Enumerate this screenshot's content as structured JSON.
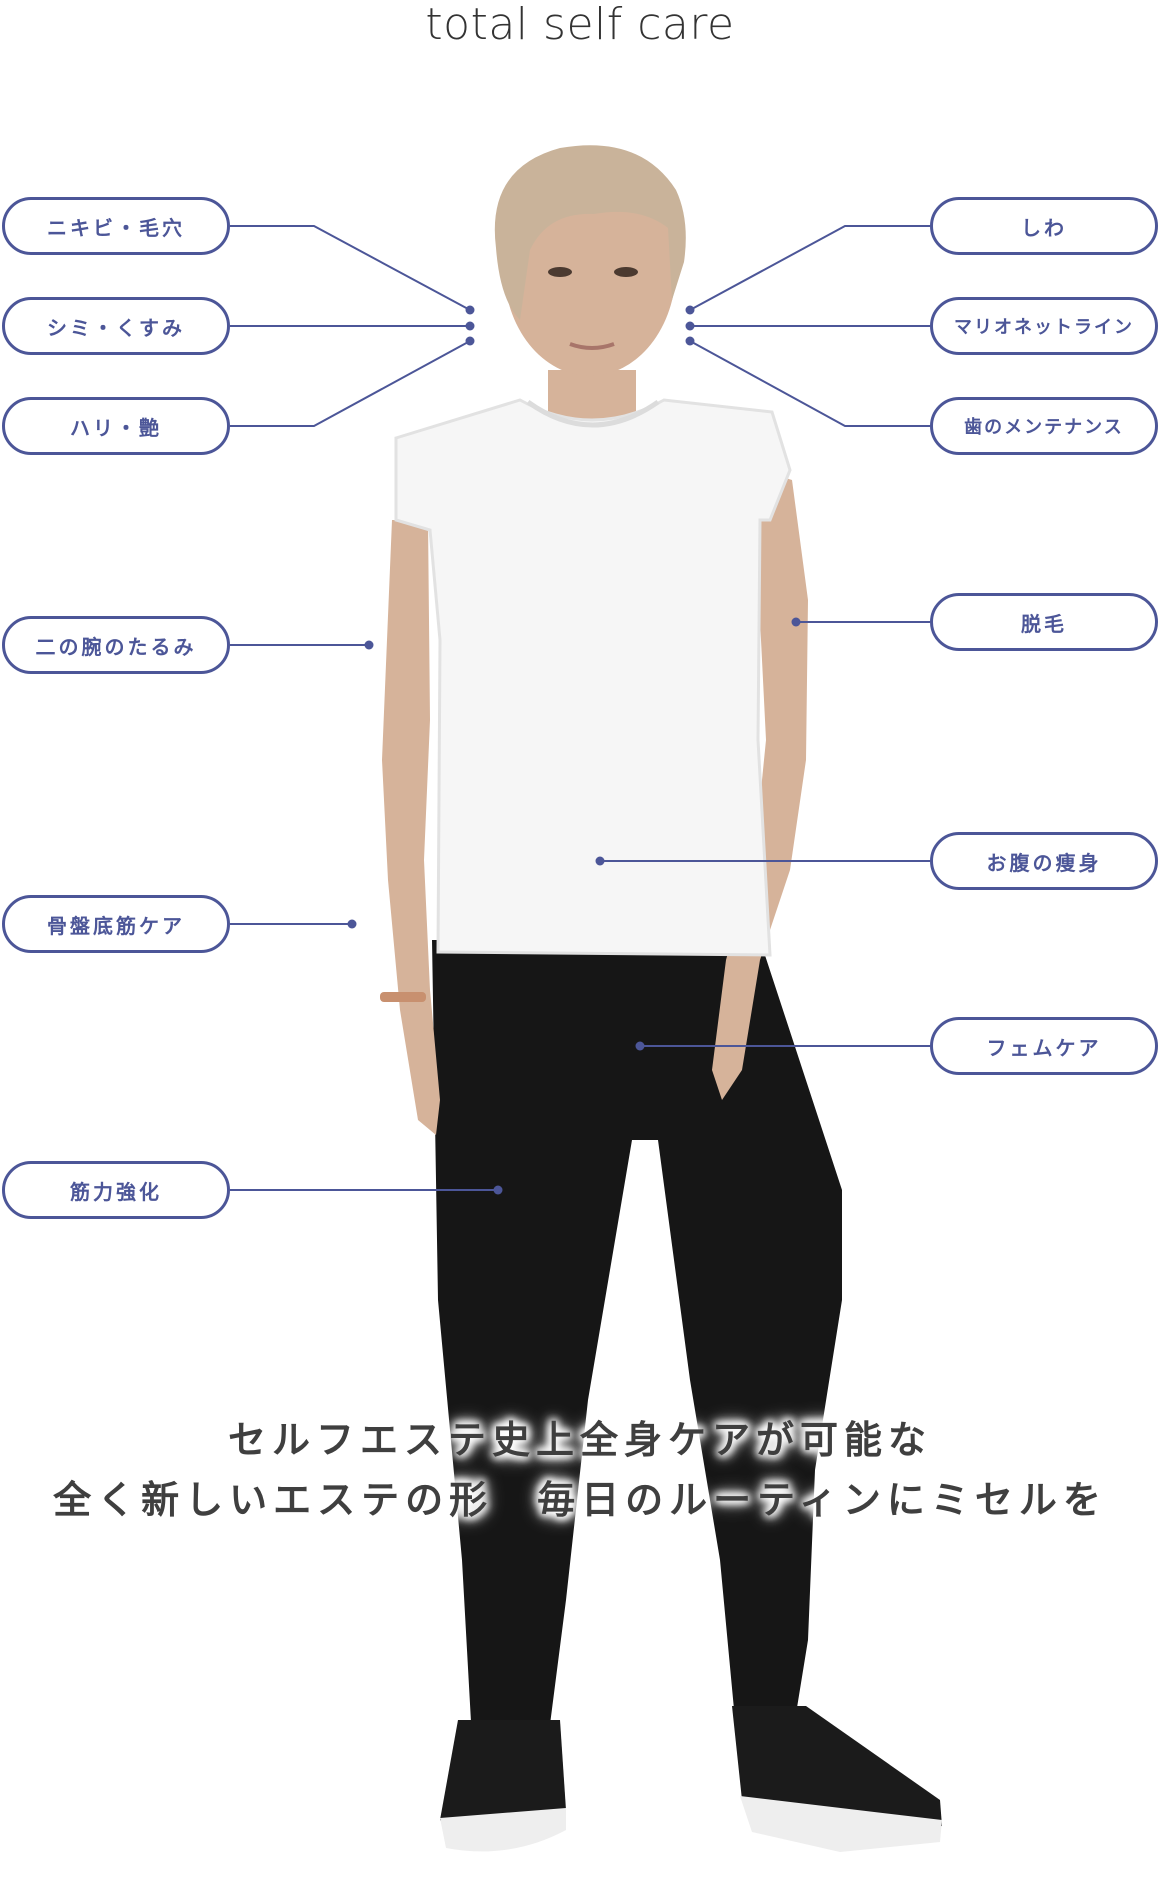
{
  "heading": "total self care",
  "left_labels": [
    {
      "text": "ニキビ・毛穴"
    },
    {
      "text": "シミ・くすみ"
    },
    {
      "text": "ハリ・艶"
    },
    {
      "text": "二の腕のたるみ"
    },
    {
      "text": "骨盤底筋ケア"
    },
    {
      "text": "筋力強化"
    }
  ],
  "right_labels": [
    {
      "text": "しわ"
    },
    {
      "text": "マリオネットライン"
    },
    {
      "text": "歯のメンテナンス"
    },
    {
      "text": "脱毛"
    },
    {
      "text": "お腹の痩身"
    },
    {
      "text": "フェムケア"
    }
  ],
  "tagline": {
    "line1": "セルフエステ史上全身ケアが可能な",
    "line2": "全く新しいエステの形　毎日のルーティンにミセルを"
  },
  "colors": {
    "accent": "#4c5698",
    "text": "#333333",
    "shirt": "#ffffff",
    "leggings": "#161616",
    "hair": "#c9b39a",
    "skin": "#d6b39a"
  }
}
